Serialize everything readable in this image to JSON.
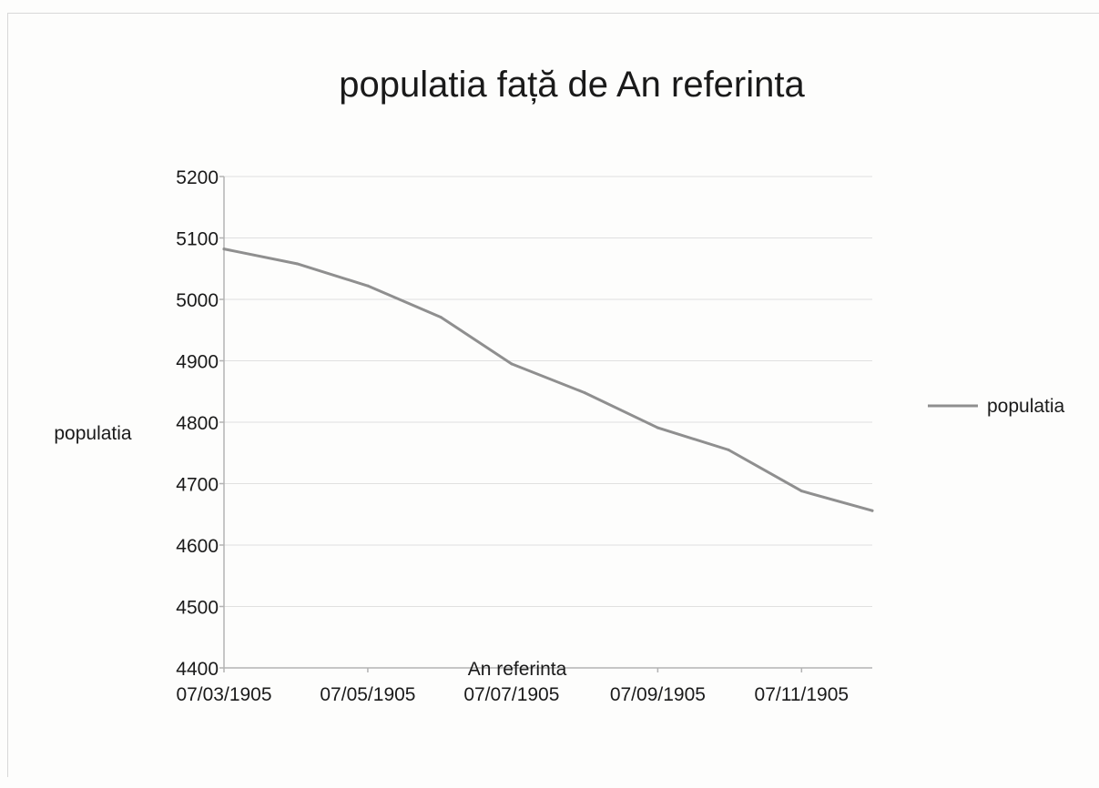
{
  "chart_data": {
    "type": "line",
    "title": "populatia față de An referinta",
    "xlabel": "An referinta",
    "ylabel": "populatia",
    "x_ticks": [
      "07/03/1905",
      "07/05/1905",
      "07/07/1905",
      "07/09/1905",
      "07/11/1905"
    ],
    "y_ticks": [
      4400,
      4500,
      4600,
      4700,
      4800,
      4900,
      5000,
      5100,
      5200
    ],
    "ylim": [
      4400,
      5200
    ],
    "grid": true,
    "legend_position": "right",
    "series": [
      {
        "name": "populatia",
        "color": "#8f8f8f",
        "points": [
          {
            "x": "07/03/1905",
            "y": 5082
          },
          {
            "x": "07/04/1905",
            "y": 5058
          },
          {
            "x": "07/05/1905",
            "y": 5022
          },
          {
            "x": "07/06/1905",
            "y": 4971
          },
          {
            "x": "07/07/1905",
            "y": 4895
          },
          {
            "x": "07/08/1905",
            "y": 4848
          },
          {
            "x": "07/09/1905",
            "y": 4791
          },
          {
            "x": "07/10/1905",
            "y": 4755
          },
          {
            "x": "07/11/1905",
            "y": 4688
          },
          {
            "x": "07/12/1905",
            "y": 4656
          }
        ]
      }
    ]
  }
}
